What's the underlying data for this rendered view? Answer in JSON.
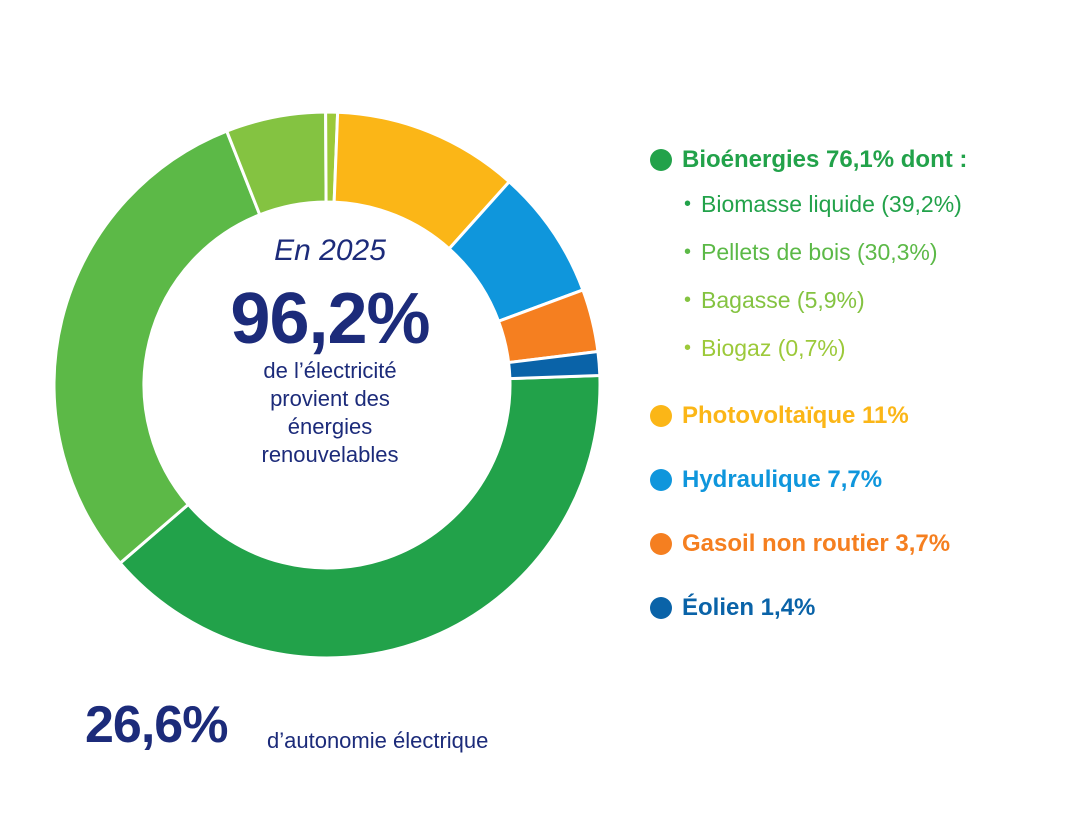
{
  "center": {
    "year": "En 2025",
    "percent": "96,2%",
    "desc_line1": "de l’électricité",
    "desc_line2": "provient des",
    "desc_line3": "énergies",
    "desc_line4": "renouvelables"
  },
  "footer": {
    "percent": "26,6%",
    "label": "d’autonomie électrique"
  },
  "chart_data": {
    "type": "pie",
    "donut": true,
    "slices": [
      {
        "label": "Biomasse liquide (39,2%)",
        "value": 39.2,
        "color": "#22a24a"
      },
      {
        "label": "Pellets de bois (30,3%)",
        "value": 30.3,
        "color": "#5cb947"
      },
      {
        "label": "Bagasse (5,9%)",
        "value": 5.9,
        "color": "#84c341"
      },
      {
        "label": "Biogaz (0,7%)",
        "value": 0.7,
        "color": "#9cc93a"
      },
      {
        "label": "Photovoltaïque 11%",
        "value": 11.0,
        "color": "#fbb617"
      },
      {
        "label": "Hydraulique 7,7%",
        "value": 7.7,
        "color": "#0f96dc"
      },
      {
        "label": "Gasoil non routier 3,7%",
        "value": 3.7,
        "color": "#f57f20"
      },
      {
        "label": "Éolien 1,4%",
        "value": 1.4,
        "color": "#0a63a8"
      }
    ],
    "legend": [
      {
        "text": "Bioénergies 76,1% dont :",
        "color": "#22a24a",
        "kind": "main"
      },
      {
        "text": "Biomasse liquide (39,2%)",
        "color": "#22a24a",
        "kind": "sub"
      },
      {
        "text": "Pellets de bois (30,3%)",
        "color": "#5cb947",
        "kind": "sub"
      },
      {
        "text": "Bagasse (5,9%)",
        "color": "#84c341",
        "kind": "sub"
      },
      {
        "text": "Biogaz (0,7%)",
        "color": "#9cc93a",
        "kind": "sub"
      },
      {
        "text": "Photovoltaïque 11%",
        "color": "#fbb617",
        "kind": "main"
      },
      {
        "text": "Hydraulique 7,7%",
        "color": "#0f96dc",
        "kind": "main"
      },
      {
        "text": "Gasoil non routier 3,7%",
        "color": "#f57f20",
        "kind": "main"
      },
      {
        "text": "Éolien 1,4%",
        "color": "#0a63a8",
        "kind": "main"
      }
    ]
  }
}
